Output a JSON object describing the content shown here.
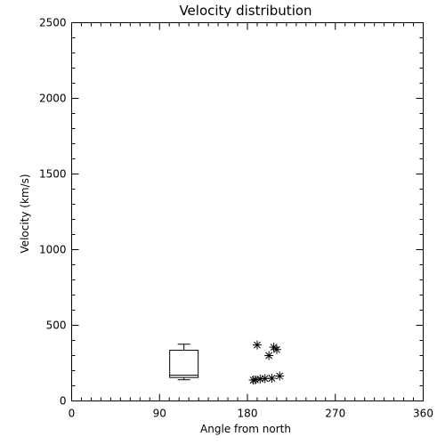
{
  "chart_data": {
    "type": "scatter",
    "title": "Velocity distribution",
    "xlabel": "Angle from north",
    "ylabel": "Velocity (km/s)",
    "xlim": [
      0,
      360
    ],
    "ylim": [
      0,
      2500
    ],
    "x_ticks": [
      0,
      90,
      180,
      270,
      360
    ],
    "y_ticks": [
      0,
      500,
      1000,
      1500,
      2000,
      2500
    ],
    "x_minor_step": 10,
    "y_minor_step": 100,
    "grid": false,
    "box": {
      "x": 115,
      "min": 140,
      "q1": 155,
      "median": 170,
      "q3": 335,
      "max": 375
    },
    "series": [
      {
        "marker": "asterisk",
        "points": [
          [
            190,
            370
          ],
          [
            207,
            355
          ],
          [
            210,
            340
          ],
          [
            202,
            300
          ],
          [
            213,
            165
          ],
          [
            205,
            150
          ],
          [
            198,
            148
          ],
          [
            193,
            145
          ],
          [
            188,
            140
          ],
          [
            186,
            138
          ]
        ]
      }
    ]
  }
}
